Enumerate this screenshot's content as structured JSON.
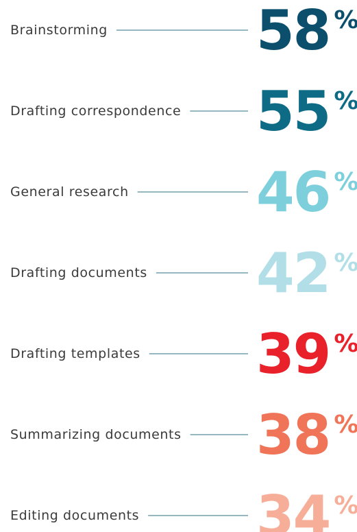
{
  "chart_data": {
    "type": "stat_list",
    "categories": [
      "Brainstorming",
      "Drafting correspondence",
      "General research",
      "Drafting documents",
      "Drafting templates",
      "Summarizing documents",
      "Editing documents"
    ],
    "values": [
      58,
      55,
      46,
      42,
      39,
      38,
      34
    ],
    "colors": [
      "#0b4f6c",
      "#0e6b86",
      "#7ccfdb",
      "#b2dfe7",
      "#e8212b",
      "#f07457",
      "#f6ae99"
    ],
    "unit": "%",
    "line_color": "#2b6f86"
  }
}
